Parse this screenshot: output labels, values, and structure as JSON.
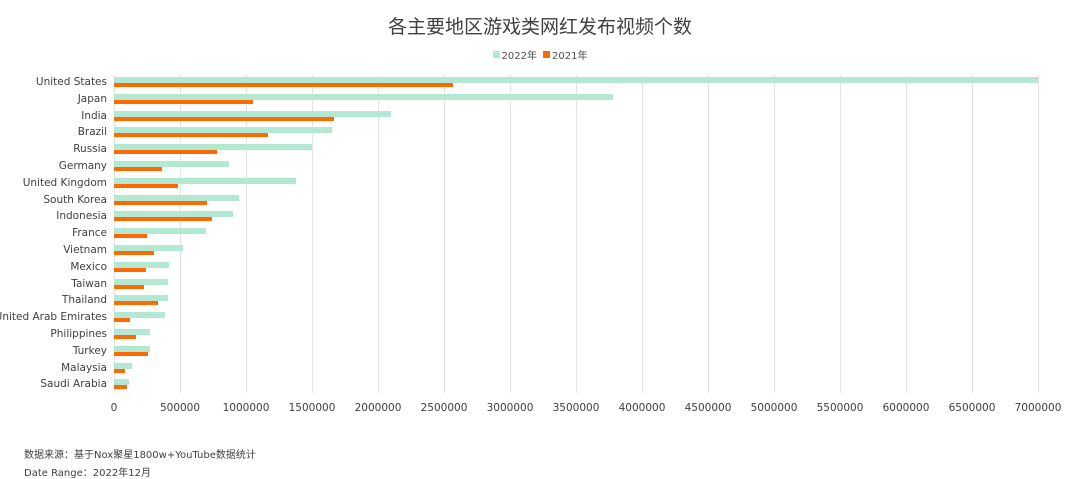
{
  "title": "各主要地区游戏类网红发布视频个数",
  "legend": [
    {
      "label": "2022年",
      "color": "#b3e9d2"
    },
    {
      "label": "2021年",
      "color": "#ff6a00"
    }
  ],
  "footer": {
    "source": "数据来源：基于Nox聚星1800w+YouTube数据统计",
    "date_range": "Date Range：2022年12月"
  },
  "chart_data": {
    "type": "bar",
    "orientation": "horizontal",
    "title": "各主要地区游戏类网红发布视频个数",
    "xlabel": "",
    "ylabel": "",
    "xlim": [
      0,
      7000000
    ],
    "x_ticks": [
      "0",
      "500000",
      "1000000",
      "1500000",
      "2000000",
      "2500000",
      "3000000",
      "3500000",
      "4000000",
      "4500000",
      "5000000",
      "5500000",
      "6000000",
      "6500000",
      "7000000"
    ],
    "grid": "vertical",
    "legend_position": "top",
    "categories": [
      "United States",
      "Japan",
      "India",
      "Brazil",
      "Russia",
      "Germany",
      "United Kingdom",
      "South Korea",
      "Indonesia",
      "France",
      "Vietnam",
      "Mexico",
      "Taiwan",
      "Thailand",
      "United Arab Emirates",
      "Philippines",
      "Turkey",
      "Malaysia",
      "Saudi Arabia"
    ],
    "series": [
      {
        "name": "2022年",
        "color": "#b3e9d2",
        "values": [
          7000000,
          3780000,
          2100000,
          1650000,
          1500000,
          870000,
          1380000,
          950000,
          900000,
          700000,
          520000,
          420000,
          410000,
          410000,
          385000,
          270000,
          270000,
          140000,
          110000
        ]
      },
      {
        "name": "2021年",
        "color": "#ff6a00",
        "values": [
          2570000,
          1050000,
          1670000,
          1170000,
          780000,
          365000,
          485000,
          705000,
          745000,
          250000,
          300000,
          240000,
          230000,
          330000,
          120000,
          170000,
          255000,
          85000,
          95000
        ]
      }
    ]
  }
}
